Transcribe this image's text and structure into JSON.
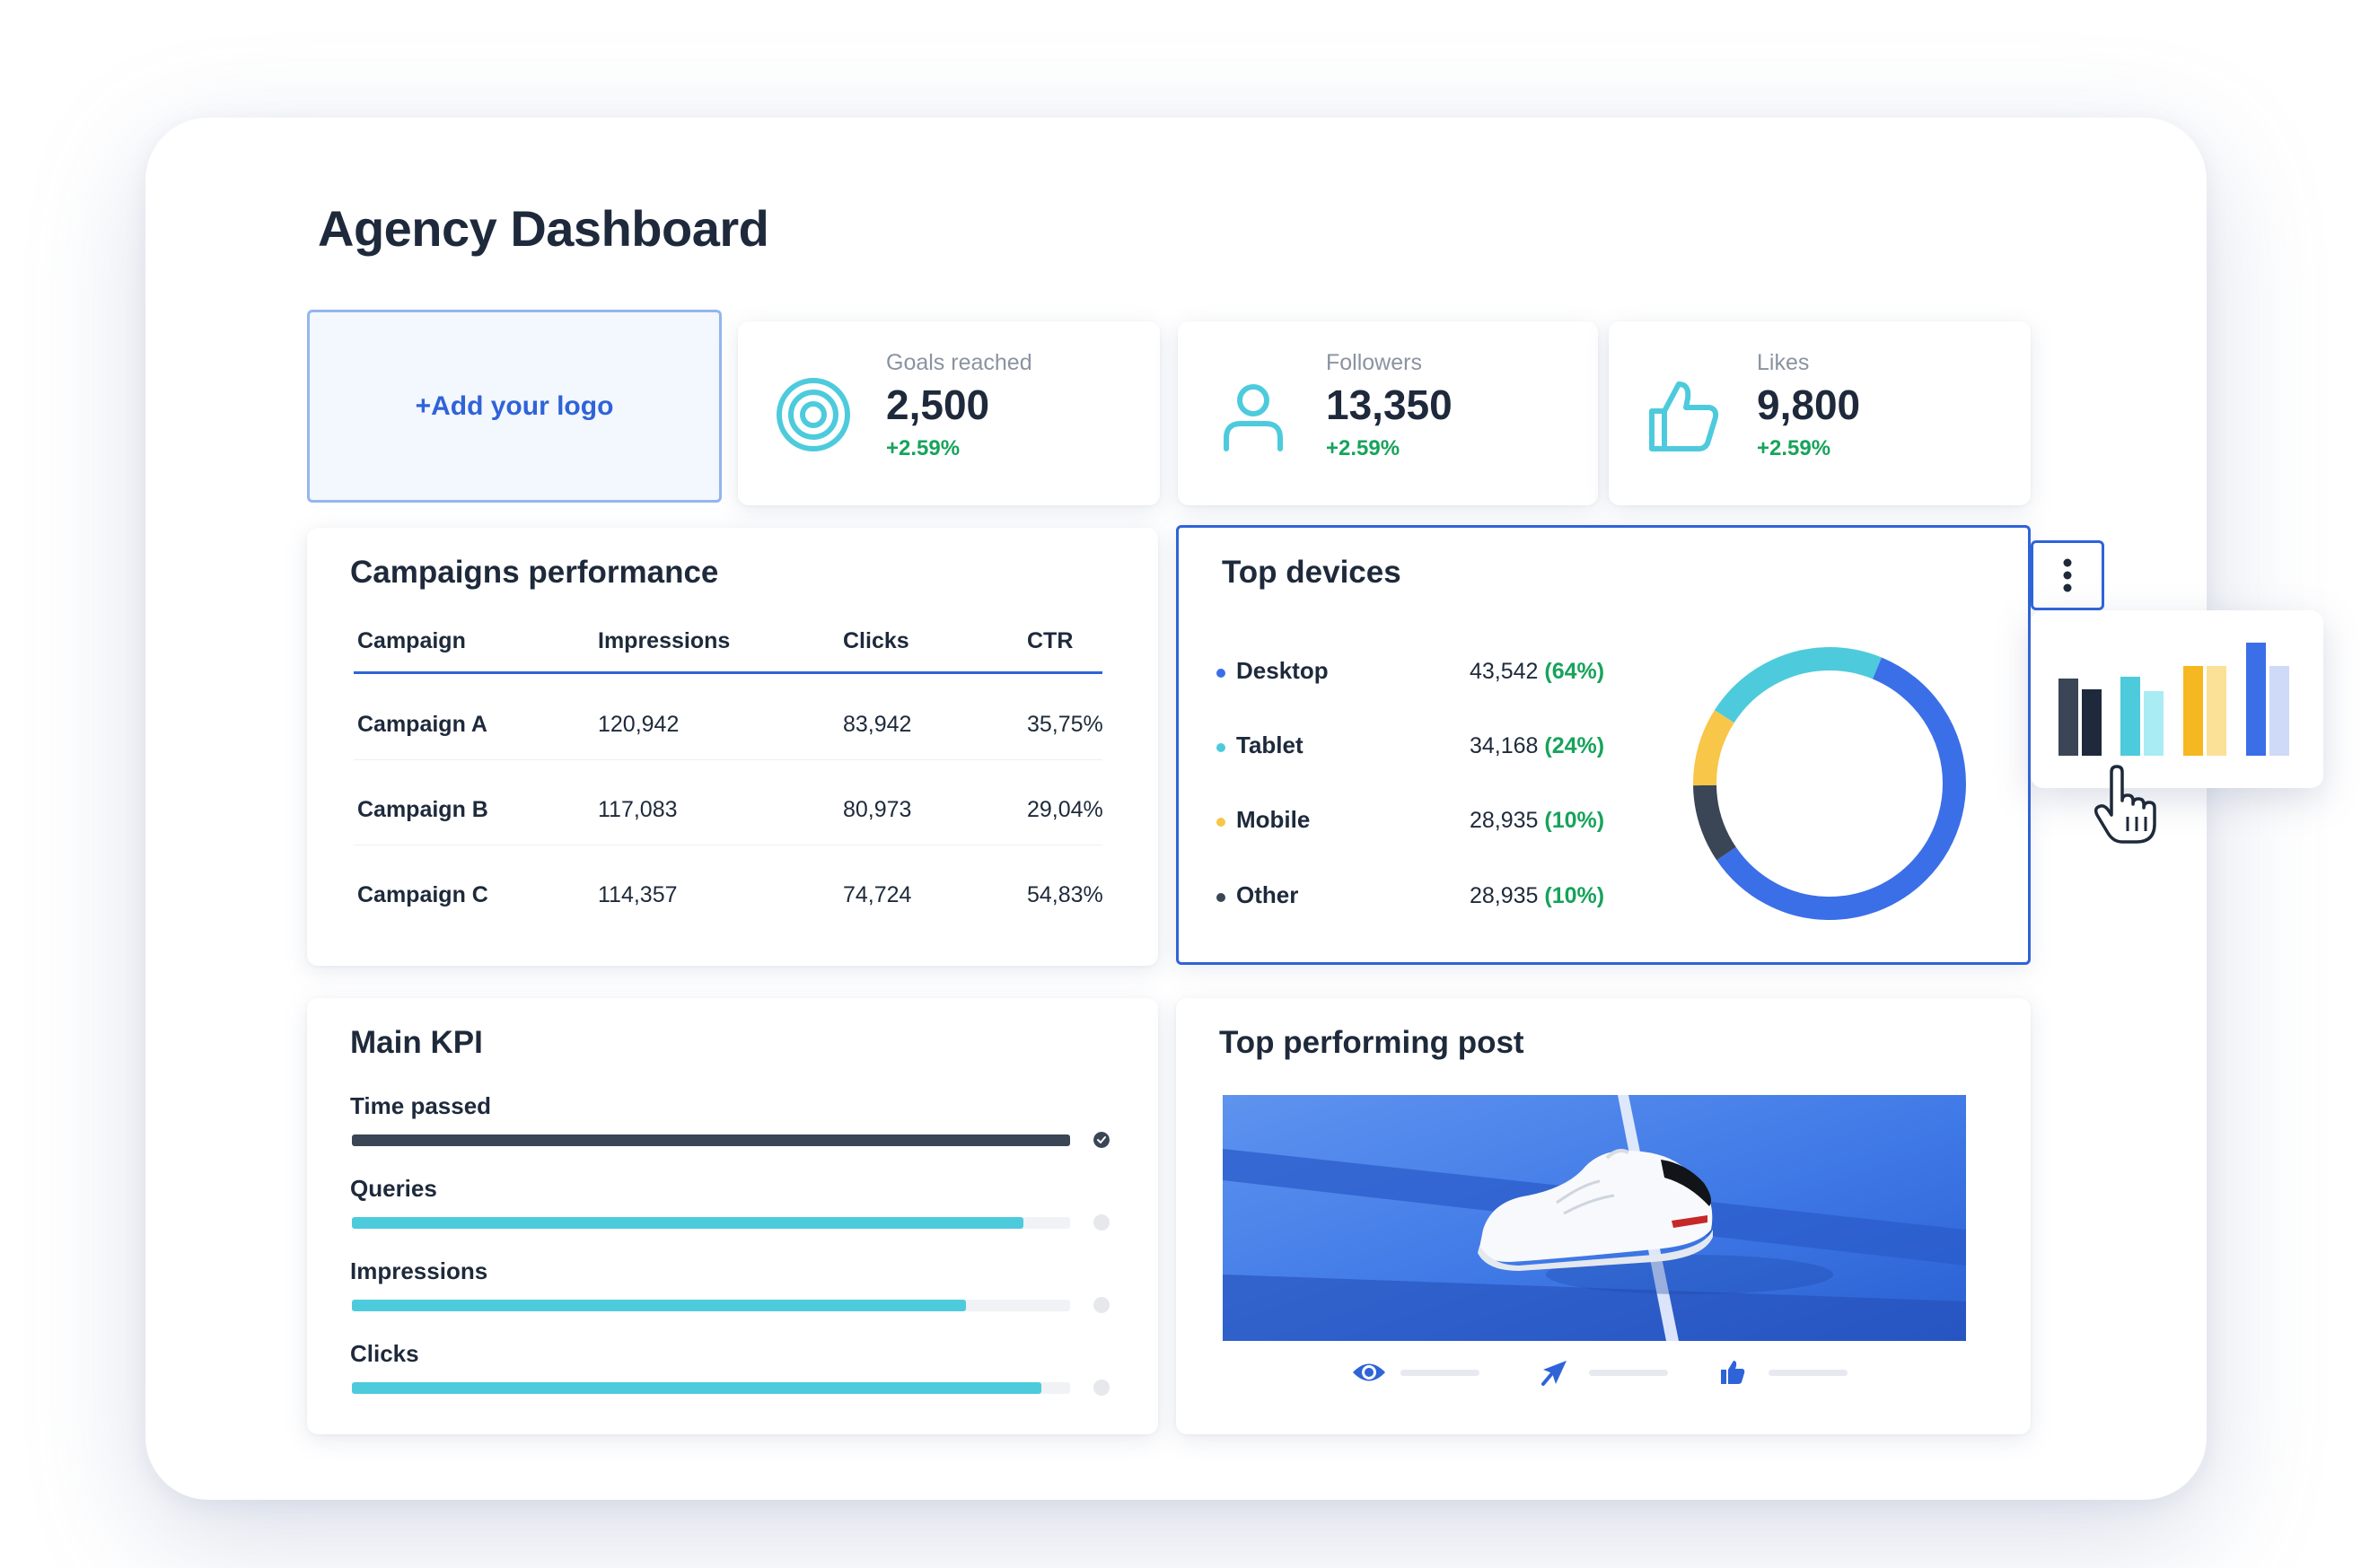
{
  "dashboard": {
    "title": "Agency Dashboard"
  },
  "logo": {
    "label": "+Add your logo"
  },
  "kpis": [
    {
      "label": "Goals reached",
      "value": "2,500",
      "change": "+2.59%",
      "icon": "target-icon"
    },
    {
      "label": "Followers",
      "value": "13,350",
      "change": "+2.59%",
      "icon": "user-icon"
    },
    {
      "label": "Likes",
      "value": "9,800",
      "change": "+2.59%",
      "icon": "thumbs-up-icon"
    }
  ],
  "campaigns": {
    "title": "Campaigns performance",
    "columns": [
      "Campaign",
      "Impressions",
      "Clicks",
      "CTR"
    ],
    "rows": [
      [
        "Campaign A",
        "120,942",
        "83,942",
        "35,75%"
      ],
      [
        "Campaign B",
        "117,083",
        "80,973",
        "29,04%"
      ],
      [
        "Campaign C",
        "114,357",
        "74,724",
        "54,83%"
      ]
    ]
  },
  "devices": {
    "title": "Top devices",
    "items": [
      {
        "name": "Desktop",
        "value": "43,542",
        "pct": "(64%)",
        "color": "#3b6fe8"
      },
      {
        "name": "Tablet",
        "value": "34,168",
        "pct": "(24%)",
        "color": "#4dcbdc"
      },
      {
        "name": "Mobile",
        "value": "28,935",
        "pct": "(10%)",
        "color": "#f8c648"
      },
      {
        "name": "Other",
        "value": "28,935",
        "pct": "(10%)",
        "color": "#3a4556"
      }
    ]
  },
  "chart_data": {
    "type": "pie",
    "categories": [
      "Desktop",
      "Tablet",
      "Mobile",
      "Other"
    ],
    "values": [
      64,
      24,
      10,
      10
    ],
    "colors": [
      "#3b6fe8",
      "#4dcbdc",
      "#f8c648",
      "#3a4556"
    ]
  },
  "main_kpi": {
    "title": "Main KPI",
    "items": [
      {
        "label": "Time passed",
        "progress": 1.0,
        "done": true,
        "color": "#3a4556"
      },
      {
        "label": "Queries",
        "progress": 0.935,
        "done": false,
        "color": "#4dcbdc"
      },
      {
        "label": "Impressions",
        "progress": 0.855,
        "done": false,
        "color": "#4dcbdc"
      },
      {
        "label": "Clicks",
        "progress": 0.96,
        "done": false,
        "color": "#4dcbdc"
      }
    ]
  },
  "top_post": {
    "title": "Top performing post",
    "stats": [
      "eye-icon",
      "share-icon",
      "thumbs-up-icon"
    ]
  },
  "colors": {
    "accent": "#2f63d8",
    "positive": "#17a35b",
    "text": "#1e2a3b"
  }
}
